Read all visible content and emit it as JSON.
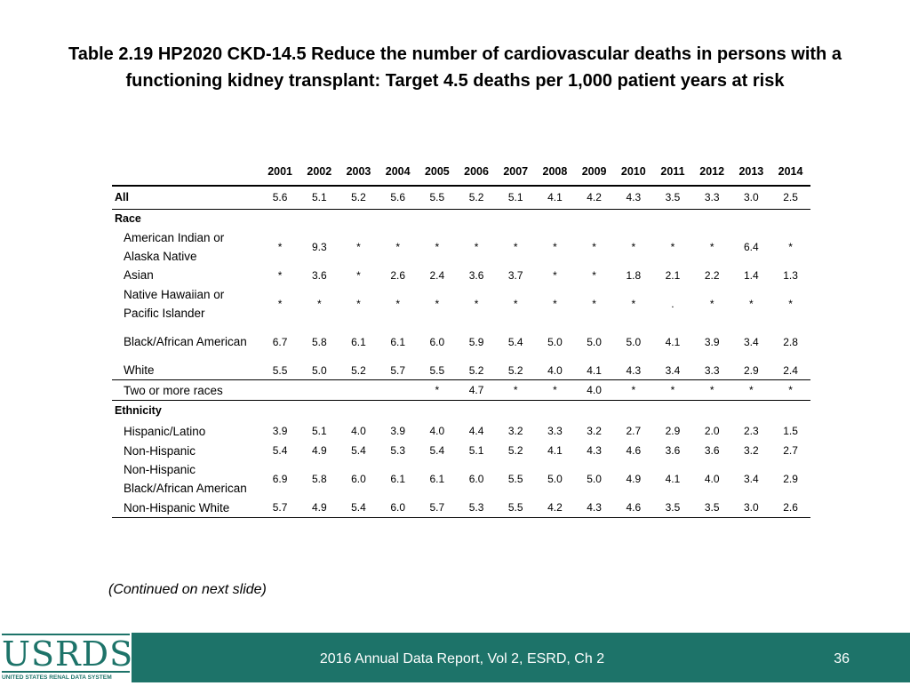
{
  "title_line1": "Table 2.19  HP2020 CKD-14.5 Reduce the number of cardiovascular deaths in persons with a",
  "title_line2": "functioning kidney transplant: Target 4.5 deaths per 1,000 patient years at risk",
  "table": {
    "years": [
      "2001",
      "2002",
      "2003",
      "2004",
      "2005",
      "2006",
      "2007",
      "2008",
      "2009",
      "2010",
      "2011",
      "2012",
      "2013",
      "2014"
    ],
    "rows": [
      {
        "kind": "data",
        "style": "section rowtop",
        "label": "All",
        "values": [
          "5.6",
          "5.1",
          "5.2",
          "5.6",
          "5.5",
          "5.2",
          "5.1",
          "4.1",
          "4.2",
          "4.3",
          "3.5",
          "3.3",
          "3.0",
          "2.5"
        ]
      },
      {
        "kind": "heading",
        "style": "section",
        "label": "Race",
        "values": []
      },
      {
        "kind": "data",
        "style": "sub",
        "label": "American Indian or Alaska Native",
        "values": [
          "*",
          "9.3",
          "*",
          "*",
          "*",
          "*",
          "*",
          "*",
          "*",
          "*",
          "*",
          "*",
          "6.4",
          "*"
        ]
      },
      {
        "kind": "data",
        "style": "sub",
        "label": "Asian",
        "values": [
          "*",
          "3.6",
          "*",
          "2.6",
          "2.4",
          "3.6",
          "3.7",
          "*",
          "*",
          "1.8",
          "2.1",
          "2.2",
          "1.4",
          "1.3"
        ]
      },
      {
        "kind": "data",
        "style": "sub",
        "label": "Native Hawaiian or Pacific Islander",
        "values": [
          "*",
          "*",
          "*",
          "*",
          "*",
          "*",
          "*",
          "*",
          "*",
          "*",
          ".",
          "*",
          "*",
          "*"
        ]
      },
      {
        "kind": "data",
        "style": "sub",
        "label": "Black/African American",
        "values": [
          "6.7",
          "5.8",
          "6.1",
          "6.1",
          "6.0",
          "5.9",
          "5.4",
          "5.0",
          "5.0",
          "5.0",
          "4.1",
          "3.9",
          "3.4",
          "2.8"
        ]
      },
      {
        "kind": "data",
        "style": "sub rowtop",
        "label": "White",
        "values": [
          "5.5",
          "5.0",
          "5.2",
          "5.7",
          "5.5",
          "5.2",
          "5.2",
          "4.0",
          "4.1",
          "4.3",
          "3.4",
          "3.3",
          "2.9",
          "2.4"
        ]
      },
      {
        "kind": "data",
        "style": "sub rowtop",
        "label": "Two or more races",
        "values": [
          "",
          "",
          "",
          "",
          "*",
          "4.7",
          "*",
          "*",
          "4.0",
          "*",
          "*",
          "*",
          "*",
          "*"
        ]
      },
      {
        "kind": "heading",
        "style": "section",
        "label": "Ethnicity",
        "values": []
      },
      {
        "kind": "data",
        "style": "sub",
        "label": "Hispanic/Latino",
        "values": [
          "3.9",
          "5.1",
          "4.0",
          "3.9",
          "4.0",
          "4.4",
          "3.2",
          "3.3",
          "3.2",
          "2.7",
          "2.9",
          "2.0",
          "2.3",
          "1.5"
        ]
      },
      {
        "kind": "data",
        "style": "sub",
        "label": "Non-Hispanic",
        "values": [
          "5.4",
          "4.9",
          "5.4",
          "5.3",
          "5.4",
          "5.1",
          "5.2",
          "4.1",
          "4.3",
          "4.6",
          "3.6",
          "3.6",
          "3.2",
          "2.7"
        ]
      },
      {
        "kind": "data",
        "style": "sub",
        "label": "Non-Hispanic Black/African American",
        "values": [
          "6.9",
          "5.8",
          "6.0",
          "6.1",
          "6.1",
          "6.0",
          "5.5",
          "5.0",
          "5.0",
          "4.9",
          "4.1",
          "4.0",
          "3.4",
          "2.9"
        ]
      },
      {
        "kind": "data",
        "style": "sub rowlast",
        "label": "Non-Hispanic White",
        "values": [
          "5.7",
          "4.9",
          "5.4",
          "6.0",
          "5.7",
          "5.3",
          "5.5",
          "4.2",
          "4.3",
          "4.6",
          "3.5",
          "3.5",
          "3.0",
          "2.6"
        ]
      }
    ]
  },
  "continued": "(Continued on next slide)",
  "footer": {
    "logo_word": "USRDS",
    "logo_sub": "UNITED STATES RENAL DATA SYSTEM",
    "text": "2016 Annual Data Report, Vol 2, ESRD, Ch 2",
    "page": "36",
    "bg_color": "#1d7369"
  }
}
